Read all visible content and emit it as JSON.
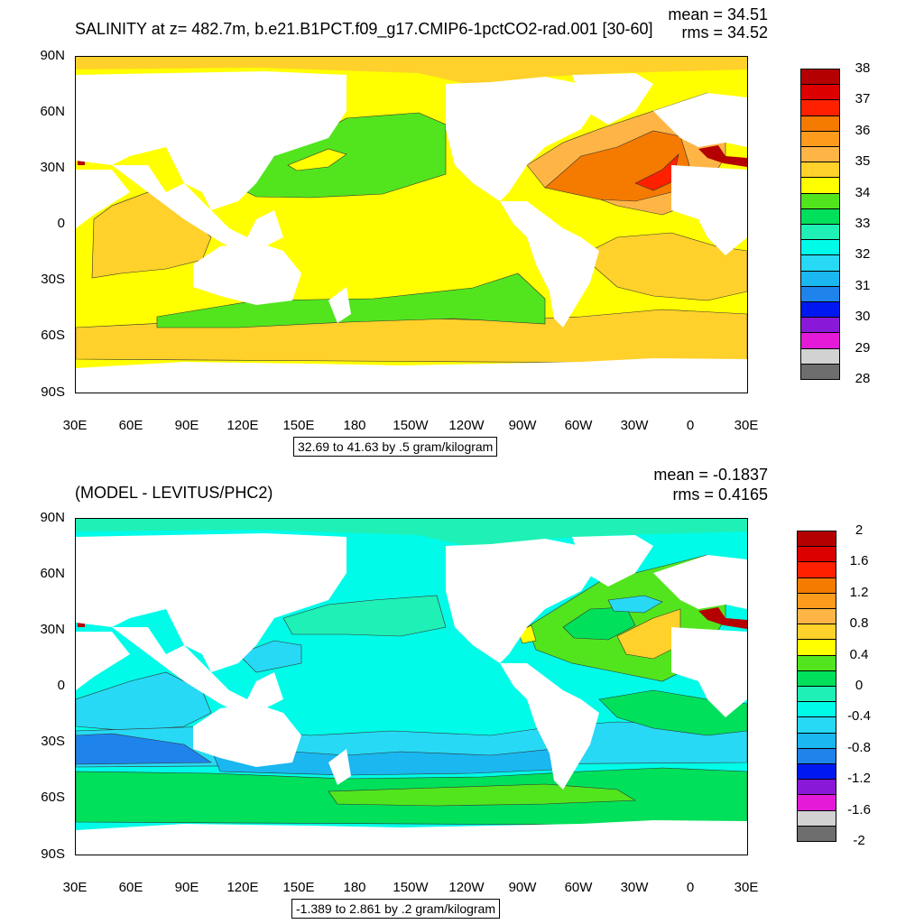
{
  "panels": [
    {
      "title": "SALINITY at z= 482.7m, b.e21.B1PCT.f09_g17.CMIP6-1pctCO2-rad.001 [30-60]",
      "mean_label": "mean = 34.51",
      "rms_label": "rms = 34.52",
      "caption": "32.69 to 41.63 by .5 gram/kilogram",
      "colorbar_labels": [
        "38",
        "37",
        "36",
        "35",
        "34",
        "33",
        "32",
        "31",
        "30",
        "29",
        "28"
      ],
      "colorbar_colors": [
        "#b40000",
        "#dc0000",
        "#ff2000",
        "#f57a00",
        "#ff9b1c",
        "#ffb545",
        "#ffd12a",
        "#ffff00",
        "#52e51e",
        "#00e05a",
        "#1ff0b5",
        "#00fce8",
        "#27d9f5",
        "#1ab7f0",
        "#1f83ec",
        "#0018f0",
        "#8a18d8",
        "#e31ad8",
        "#d2d2d2",
        "#6e6e6e"
      ],
      "field": "salinity"
    },
    {
      "title": "(MODEL - LEVITUS/PHC2)",
      "mean_label": "mean = -0.1837",
      "rms_label": "rms = 0.4165",
      "caption": "-1.389 to 2.861 by .2 gram/kilogram",
      "colorbar_labels": [
        "2",
        "1.6",
        "1.2",
        "0.8",
        "0.4",
        "0",
        "-0.4",
        "-0.8",
        "-1.2",
        "-1.6",
        "-2"
      ],
      "colorbar_colors": [
        "#b40000",
        "#dc0000",
        "#ff2000",
        "#f57a00",
        "#ff9b1c",
        "#ffb545",
        "#ffd12a",
        "#ffff00",
        "#52e51e",
        "#00e05a",
        "#1ff0b5",
        "#00fce8",
        "#27d9f5",
        "#1ab7f0",
        "#1f83ec",
        "#0018f0",
        "#8a18d8",
        "#e31ad8",
        "#d2d2d2",
        "#6e6e6e"
      ],
      "field": "difference"
    }
  ],
  "lat_labels": [
    "90N",
    "60N",
    "30N",
    "0",
    "30S",
    "60S",
    "90S"
  ],
  "lon_labels": [
    "30E",
    "60E",
    "90E",
    "120E",
    "150E",
    "180",
    "150W",
    "120W",
    "90W",
    "60W",
    "30W",
    "0",
    "30E"
  ],
  "colors": {
    "land": "#ffffff",
    "salinity_base": "#ffff00",
    "salinity_high": "#ffb545",
    "salinity_med": "#ffd12a",
    "salinity_atlantic": "#f57a00",
    "salinity_max": "#ff2000",
    "salinity_low": "#52e51e",
    "diff_base": "#00fce8",
    "diff_neg1": "#27d9f5",
    "diff_neg2": "#1ab7f0",
    "diff_neg3": "#1f83ec",
    "diff_pos0": "#00e05a",
    "diff_pos1": "#52e51e",
    "diff_pos2": "#ffff00",
    "diff_pos3": "#ffd12a",
    "med": "#b40000"
  }
}
